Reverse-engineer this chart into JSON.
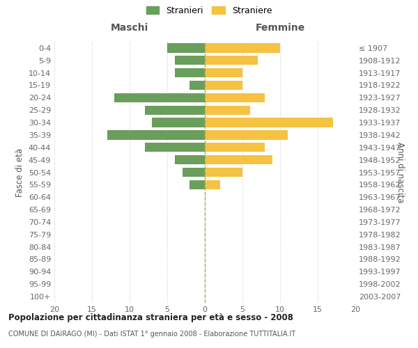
{
  "age_groups": [
    "0-4",
    "5-9",
    "10-14",
    "15-19",
    "20-24",
    "25-29",
    "30-34",
    "35-39",
    "40-44",
    "45-49",
    "50-54",
    "55-59",
    "60-64",
    "65-69",
    "70-74",
    "75-79",
    "80-84",
    "85-89",
    "90-94",
    "95-99",
    "100+"
  ],
  "birth_years": [
    "2003-2007",
    "1998-2002",
    "1993-1997",
    "1988-1992",
    "1983-1987",
    "1978-1982",
    "1973-1977",
    "1968-1972",
    "1963-1967",
    "1958-1962",
    "1953-1957",
    "1948-1952",
    "1943-1947",
    "1938-1942",
    "1933-1937",
    "1928-1932",
    "1923-1927",
    "1918-1922",
    "1913-1917",
    "1908-1912",
    "≤ 1907"
  ],
  "maschi": [
    5,
    4,
    4,
    2,
    12,
    8,
    7,
    13,
    8,
    4,
    3,
    2,
    0,
    0,
    0,
    0,
    0,
    0,
    0,
    0,
    0
  ],
  "femmine": [
    10,
    7,
    5,
    5,
    8,
    6,
    17,
    11,
    8,
    9,
    5,
    2,
    0,
    0,
    0,
    0,
    0,
    0,
    0,
    0,
    0
  ],
  "color_maschi": "#6a9e5b",
  "color_femmine": "#f5c242",
  "xlim": 20,
  "title": "Popolazione per cittadinanza straniera per età e sesso - 2008",
  "subtitle": "COMUNE DI DAIRAGO (MI) - Dati ISTAT 1° gennaio 2008 - Elaborazione TUTTITALIA.IT",
  "legend_maschi": "Stranieri",
  "legend_femmine": "Straniere",
  "xlabel_left": "Maschi",
  "xlabel_right": "Femmine",
  "ylabel_left": "Fasce di età",
  "ylabel_right": "Anni di nascita",
  "background_color": "#ffffff",
  "grid_color": "#cccccc",
  "bar_height": 0.75
}
